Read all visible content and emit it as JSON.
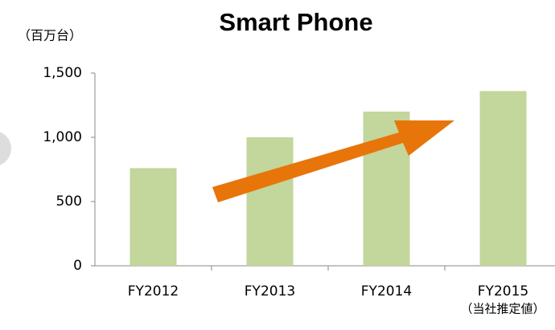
{
  "chart_data": {
    "type": "bar",
    "title": "Smart Phone",
    "y_label": "（百万台）",
    "annotation": "（当社推定値）",
    "categories": [
      "FY2012",
      "FY2013",
      "FY2014",
      "FY2015"
    ],
    "values": [
      760,
      1000,
      1200,
      1360
    ],
    "color": "#c3d69b",
    "ylim": [
      0,
      1500
    ],
    "yticks": [
      0,
      500,
      {
        "value": 1000,
        "label": "1,000"
      },
      {
        "value": 1500,
        "label": "1,500"
      }
    ],
    "grid": false
  }
}
